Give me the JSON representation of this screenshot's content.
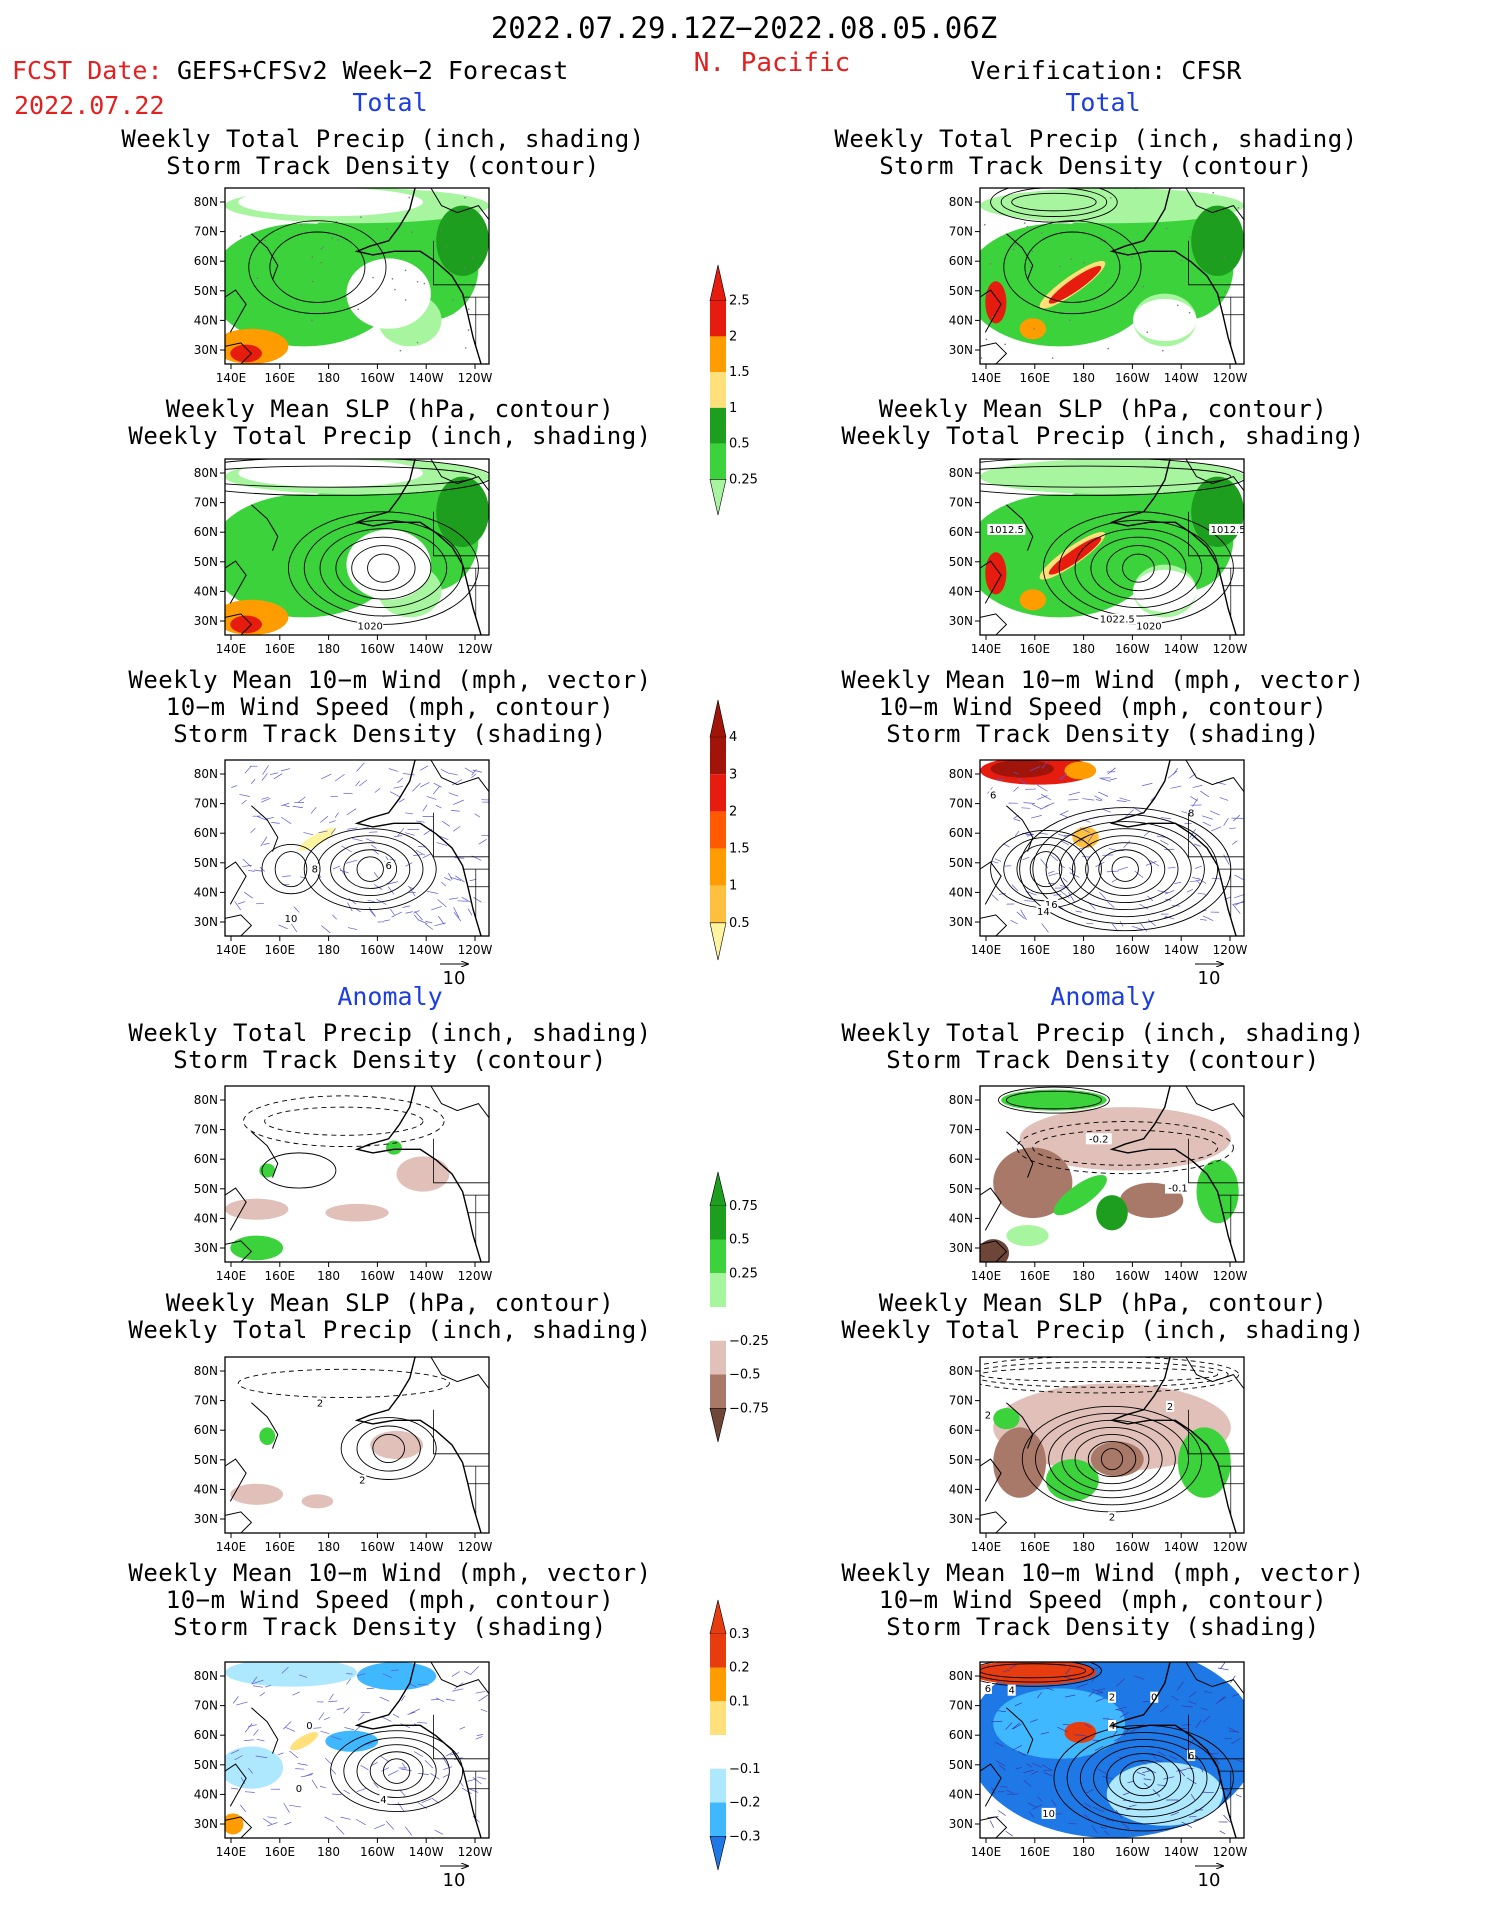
{
  "header": {
    "date_range": "2022.07.29.12Z−2022.08.05.06Z",
    "fcst_label": "FCST Date:",
    "forecast_name": "GEFS+CFSv2 Week−2 Forecast",
    "region": "N. Pacific",
    "fcst_date": "2022.07.22",
    "verification": "Verification: CFSR"
  },
  "sections": {
    "total": "Total",
    "anomaly": "Anomaly"
  },
  "titles": {
    "precip_storm": [
      "Weekly Total Precip (inch, shading)",
      "Storm Track Density (contour)"
    ],
    "slp_precip": [
      "Weekly Mean SLP (hPa, contour)",
      "Weekly Total Precip (inch, shading)"
    ],
    "wind_storm": [
      "Weekly Mean 10−m Wind (mph, vector)",
      "10−m Wind Speed (mph, contour)",
      "Storm Track Density (shading)"
    ]
  },
  "axes": {
    "lat_ticks": [
      "80N",
      "70N",
      "60N",
      "50N",
      "40N",
      "30N"
    ],
    "lon_ticks": [
      "140E",
      "160E",
      "180",
      "160W",
      "140W",
      "120W"
    ]
  },
  "vector_ref": "10",
  "contour_labels": {
    "left_slp_total": "1020",
    "right_slp_total": [
      "1012.5",
      "1012.5",
      "1022.5",
      "1020"
    ],
    "left_wind_total": [
      "8",
      "6",
      "10"
    ],
    "right_wind_total": [
      "16",
      "14",
      "6",
      "8"
    ],
    "right_precip_anom": [
      "-0.2",
      "-0.1"
    ],
    "left_slp_anom": [
      "2",
      "2"
    ],
    "right_slp_anom": [
      "2",
      "2",
      "2"
    ],
    "left_wind_anom": [
      "0",
      "4",
      "0"
    ],
    "right_wind_anom": [
      "6",
      "4",
      "2",
      "0",
      "4",
      "6",
      "10"
    ]
  },
  "colorbars": {
    "precip_total": {
      "labels": [
        "2.5",
        "2",
        "1.5",
        "1",
        "0.5",
        "0.25"
      ],
      "colors": [
        "#e61c0e",
        "#ff9c00",
        "#ffe07a",
        "#1e9e1e",
        "#3bd23b",
        "#a8f5a0"
      ]
    },
    "storm_total": {
      "labels": [
        "4",
        "3",
        "2",
        "1.5",
        "1",
        "0.5"
      ],
      "colors": [
        "#a0140a",
        "#e61c0e",
        "#ff5a00",
        "#ff9c00",
        "#ffc040",
        "#fff5a0"
      ]
    },
    "precip_anom": {
      "labels": [
        "0.75",
        "0.5",
        "0.25",
        "−0.25",
        "−0.5",
        "−0.75"
      ],
      "colors": [
        "#1e9e1e",
        "#3bd23b",
        "#a8f5a0",
        "#ffffff",
        "#e0c0b8",
        "#a87868",
        "#6e4638"
      ]
    },
    "storm_anom": {
      "labels": [
        "0.3",
        "0.2",
        "0.1",
        "−0.1",
        "−0.2",
        "−0.3"
      ],
      "colors": [
        "#e63c10",
        "#ff9c00",
        "#ffe07a",
        "#ffffff",
        "#aee8ff",
        "#40b8ff",
        "#1e78e6"
      ]
    }
  },
  "colors": {
    "title_red": "#e32020",
    "section_blue": "#1c3de0",
    "map_border": "#000000"
  }
}
